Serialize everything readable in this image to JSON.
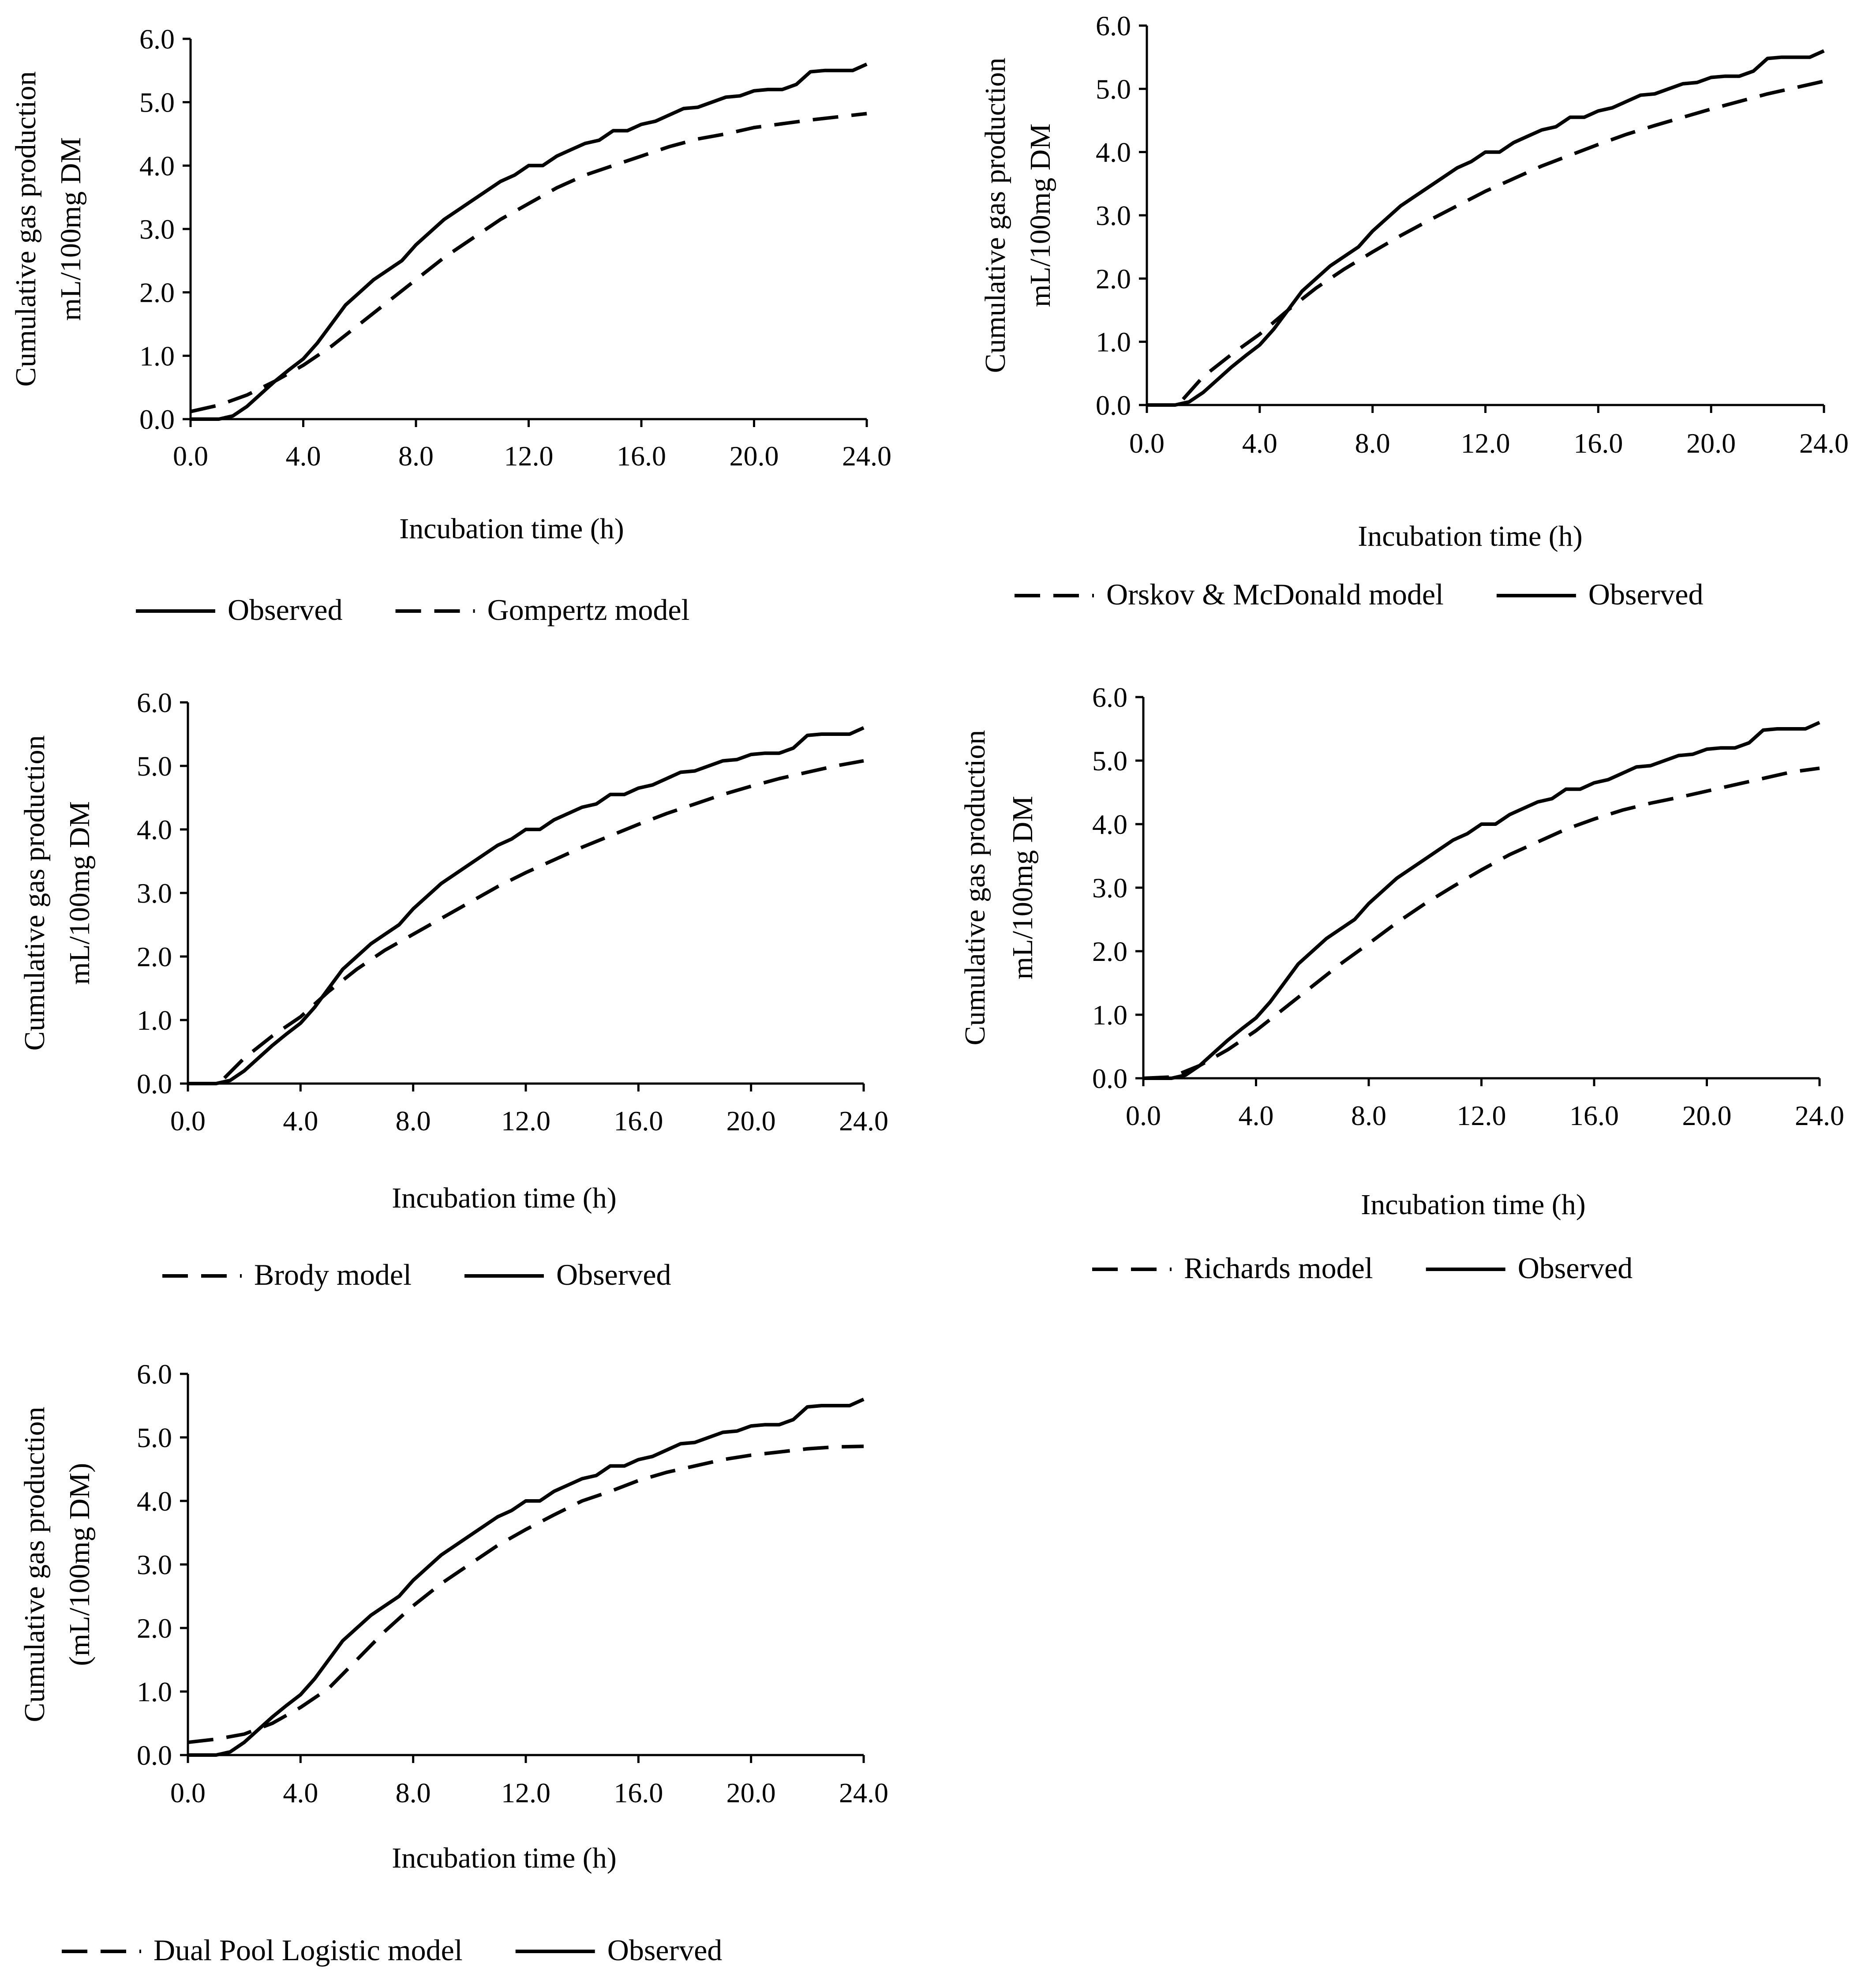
{
  "chart_data": [
    {
      "type": "line",
      "title": "",
      "xlabel": "Incubation time (h)",
      "ylabel": [
        "Cumulative gas production",
        "mL/100mg DM"
      ],
      "xlim": [
        0,
        24
      ],
      "ylim": [
        0,
        6
      ],
      "xticks": [
        "0.0",
        "4.0",
        "8.0",
        "12.0",
        "16.0",
        "20.0",
        "24.0"
      ],
      "yticks": [
        "0.0",
        "1.0",
        "2.0",
        "3.0",
        "4.0",
        "5.0",
        "6.0"
      ],
      "grid": false,
      "legend_position": "bottom",
      "legend_order": [
        "Observed",
        "Gompertz model"
      ],
      "series": [
        {
          "name": "Observed",
          "style": "solid",
          "x": [
            0,
            1,
            1.5,
            2,
            2.5,
            3,
            3.5,
            4,
            4.5,
            5,
            5.5,
            6,
            6.5,
            7,
            7.5,
            8,
            8.5,
            9,
            9.5,
            10,
            10.5,
            11,
            11.5,
            12,
            12.5,
            13,
            13.5,
            14,
            14.5,
            15,
            15.5,
            16,
            16.5,
            17,
            17.5,
            18,
            18.5,
            19,
            19.5,
            20,
            20.5,
            21,
            21.5,
            22,
            22.5,
            23,
            23.5,
            24
          ],
          "y": [
            0,
            0,
            0.05,
            0.2,
            0.4,
            0.6,
            0.78,
            0.95,
            1.2,
            1.5,
            1.8,
            2.0,
            2.2,
            2.35,
            2.5,
            2.75,
            2.95,
            3.15,
            3.3,
            3.45,
            3.6,
            3.75,
            3.85,
            4.0,
            4.0,
            4.15,
            4.25,
            4.35,
            4.4,
            4.55,
            4.55,
            4.65,
            4.7,
            4.8,
            4.9,
            4.92,
            5.0,
            5.08,
            5.1,
            5.18,
            5.2,
            5.2,
            5.28,
            5.48,
            5.5,
            5.5,
            5.5,
            5.6
          ]
        },
        {
          "name": "Gompertz model",
          "style": "dashed",
          "x": [
            0,
            1,
            2,
            3,
            4,
            5,
            6,
            7,
            8,
            9,
            10,
            11,
            12,
            13,
            14,
            15,
            16,
            17,
            18,
            19,
            20,
            21,
            22,
            23,
            24
          ],
          "y": [
            0.12,
            0.22,
            0.38,
            0.6,
            0.85,
            1.15,
            1.5,
            1.85,
            2.2,
            2.55,
            2.85,
            3.15,
            3.4,
            3.65,
            3.85,
            4.0,
            4.15,
            4.3,
            4.42,
            4.5,
            4.6,
            4.66,
            4.72,
            4.77,
            4.82
          ]
        }
      ]
    },
    {
      "type": "line",
      "title": "",
      "xlabel": "Incubation time (h)",
      "ylabel": [
        "Cumulative gas production",
        "mL/100mg DM"
      ],
      "xlim": [
        0,
        24
      ],
      "ylim": [
        0,
        6
      ],
      "xticks": [
        "0.0",
        "4.0",
        "8.0",
        "12.0",
        "16.0",
        "20.0",
        "24.0"
      ],
      "yticks": [
        "0.0",
        "1.0",
        "2.0",
        "3.0",
        "4.0",
        "5.0",
        "6.0"
      ],
      "grid": false,
      "legend_position": "bottom",
      "legend_order": [
        "Orskov & McDonald model",
        "Observed"
      ],
      "series": [
        {
          "name": "Observed",
          "style": "solid",
          "x": [
            0,
            1,
            1.5,
            2,
            2.5,
            3,
            3.5,
            4,
            4.5,
            5,
            5.5,
            6,
            6.5,
            7,
            7.5,
            8,
            8.5,
            9,
            9.5,
            10,
            10.5,
            11,
            11.5,
            12,
            12.5,
            13,
            13.5,
            14,
            14.5,
            15,
            15.5,
            16,
            16.5,
            17,
            17.5,
            18,
            18.5,
            19,
            19.5,
            20,
            20.5,
            21,
            21.5,
            22,
            22.5,
            23,
            23.5,
            24
          ],
          "y": [
            0,
            0,
            0.05,
            0.2,
            0.4,
            0.6,
            0.78,
            0.95,
            1.2,
            1.5,
            1.8,
            2.0,
            2.2,
            2.35,
            2.5,
            2.75,
            2.95,
            3.15,
            3.3,
            3.45,
            3.6,
            3.75,
            3.85,
            4.0,
            4.0,
            4.15,
            4.25,
            4.35,
            4.4,
            4.55,
            4.55,
            4.65,
            4.7,
            4.8,
            4.9,
            4.92,
            5.0,
            5.08,
            5.1,
            5.18,
            5.2,
            5.2,
            5.28,
            5.48,
            5.5,
            5.5,
            5.5,
            5.6
          ]
        },
        {
          "name": "Orskov & McDonald model",
          "style": "dashed",
          "x": [
            0,
            1.1,
            2,
            3,
            4,
            5,
            6,
            7,
            8,
            9,
            10,
            11,
            12,
            13,
            14,
            15,
            16,
            17,
            18,
            19,
            20,
            21,
            22,
            23,
            24
          ],
          "y": [
            0,
            0,
            0.45,
            0.8,
            1.12,
            1.5,
            1.85,
            2.15,
            2.42,
            2.68,
            2.92,
            3.15,
            3.38,
            3.58,
            3.78,
            3.95,
            4.12,
            4.28,
            4.42,
            4.55,
            4.68,
            4.8,
            4.92,
            5.02,
            5.12
          ]
        }
      ]
    },
    {
      "type": "line",
      "title": "",
      "xlabel": "Incubation time (h)",
      "ylabel": [
        "Cumulative gas production",
        "mL/100mg DM"
      ],
      "xlim": [
        0,
        24
      ],
      "ylim": [
        0,
        6
      ],
      "xticks": [
        "0.0",
        "4.0",
        "8.0",
        "12.0",
        "16.0",
        "20.0",
        "24.0"
      ],
      "yticks": [
        "0.0",
        "1.0",
        "2.0",
        "3.0",
        "4.0",
        "5.0",
        "6.0"
      ],
      "grid": false,
      "legend_position": "bottom",
      "legend_order": [
        "Brody model",
        "Observed"
      ],
      "series": [
        {
          "name": "Observed",
          "style": "solid",
          "x": [
            0,
            1,
            1.5,
            2,
            2.5,
            3,
            3.5,
            4,
            4.5,
            5,
            5.5,
            6,
            6.5,
            7,
            7.5,
            8,
            8.5,
            9,
            9.5,
            10,
            10.5,
            11,
            11.5,
            12,
            12.5,
            13,
            13.5,
            14,
            14.5,
            15,
            15.5,
            16,
            16.5,
            17,
            17.5,
            18,
            18.5,
            19,
            19.5,
            20,
            20.5,
            21,
            21.5,
            22,
            22.5,
            23,
            23.5,
            24
          ],
          "y": [
            0,
            0,
            0.05,
            0.2,
            0.4,
            0.6,
            0.78,
            0.95,
            1.2,
            1.5,
            1.8,
            2.0,
            2.2,
            2.35,
            2.5,
            2.75,
            2.95,
            3.15,
            3.3,
            3.45,
            3.6,
            3.75,
            3.85,
            4.0,
            4.0,
            4.15,
            4.25,
            4.35,
            4.4,
            4.55,
            4.55,
            4.65,
            4.7,
            4.8,
            4.9,
            4.92,
            5.0,
            5.08,
            5.1,
            5.18,
            5.2,
            5.2,
            5.28,
            5.48,
            5.5,
            5.5,
            5.5,
            5.6
          ]
        },
        {
          "name": "Brody model",
          "style": "dashed",
          "x": [
            0,
            1.1,
            2,
            3,
            4,
            5,
            6,
            7,
            8,
            9,
            10,
            11,
            12,
            13,
            14,
            15,
            16,
            17,
            18,
            19,
            20,
            21,
            22,
            23,
            24
          ],
          "y": [
            0,
            0,
            0.4,
            0.75,
            1.05,
            1.45,
            1.8,
            2.1,
            2.35,
            2.6,
            2.85,
            3.1,
            3.32,
            3.52,
            3.72,
            3.9,
            4.08,
            4.25,
            4.4,
            4.55,
            4.68,
            4.8,
            4.9,
            5.0,
            5.08
          ]
        }
      ]
    },
    {
      "type": "line",
      "title": "",
      "xlabel": "Incubation time (h)",
      "ylabel": [
        "Cumulative gas production",
        "mL/100mg DM"
      ],
      "xlim": [
        0,
        24
      ],
      "ylim": [
        0,
        6
      ],
      "xticks": [
        "0.0",
        "4.0",
        "8.0",
        "12.0",
        "16.0",
        "20.0",
        "24.0"
      ],
      "yticks": [
        "0.0",
        "1.0",
        "2.0",
        "3.0",
        "4.0",
        "5.0",
        "6.0"
      ],
      "grid": false,
      "legend_position": "bottom",
      "legend_order": [
        "Richards model",
        "Observed"
      ],
      "series": [
        {
          "name": "Observed",
          "style": "solid",
          "x": [
            0,
            1,
            1.5,
            2,
            2.5,
            3,
            3.5,
            4,
            4.5,
            5,
            5.5,
            6,
            6.5,
            7,
            7.5,
            8,
            8.5,
            9,
            9.5,
            10,
            10.5,
            11,
            11.5,
            12,
            12.5,
            13,
            13.5,
            14,
            14.5,
            15,
            15.5,
            16,
            16.5,
            17,
            17.5,
            18,
            18.5,
            19,
            19.5,
            20,
            20.5,
            21,
            21.5,
            22,
            22.5,
            23,
            23.5,
            24
          ],
          "y": [
            0,
            0,
            0.05,
            0.2,
            0.4,
            0.6,
            0.78,
            0.95,
            1.2,
            1.5,
            1.8,
            2.0,
            2.2,
            2.35,
            2.5,
            2.75,
            2.95,
            3.15,
            3.3,
            3.45,
            3.6,
            3.75,
            3.85,
            4.0,
            4.0,
            4.15,
            4.25,
            4.35,
            4.4,
            4.55,
            4.55,
            4.65,
            4.7,
            4.8,
            4.9,
            4.92,
            5.0,
            5.08,
            5.1,
            5.18,
            5.2,
            5.2,
            5.28,
            5.48,
            5.5,
            5.5,
            5.5,
            5.6
          ]
        },
        {
          "name": "Richards model",
          "style": "dashed",
          "x": [
            0,
            1,
            2,
            3,
            4,
            5,
            6,
            7,
            8,
            9,
            10,
            11,
            12,
            13,
            14,
            15,
            16,
            17,
            18,
            19,
            20,
            21,
            22,
            23,
            24
          ],
          "y": [
            0,
            0.02,
            0.2,
            0.45,
            0.75,
            1.1,
            1.45,
            1.8,
            2.12,
            2.45,
            2.75,
            3.02,
            3.28,
            3.52,
            3.72,
            3.92,
            4.08,
            4.22,
            4.33,
            4.42,
            4.52,
            4.62,
            4.72,
            4.82,
            4.88
          ]
        }
      ]
    },
    {
      "type": "line",
      "title": "",
      "xlabel": "Incubation time (h)",
      "ylabel": [
        "Cumulative gas production",
        "(mL/100mg DM)"
      ],
      "xlim": [
        0,
        24
      ],
      "ylim": [
        0,
        6
      ],
      "xticks": [
        "0.0",
        "4.0",
        "8.0",
        "12.0",
        "16.0",
        "20.0",
        "24.0"
      ],
      "yticks": [
        "0.0",
        "1.0",
        "2.0",
        "3.0",
        "4.0",
        "5.0",
        "6.0"
      ],
      "grid": false,
      "legend_position": "bottom",
      "legend_order": [
        "Dual Pool Logistic model",
        "Observed"
      ],
      "series": [
        {
          "name": "Observed",
          "style": "solid",
          "x": [
            0,
            1,
            1.5,
            2,
            2.5,
            3,
            3.5,
            4,
            4.5,
            5,
            5.5,
            6,
            6.5,
            7,
            7.5,
            8,
            8.5,
            9,
            9.5,
            10,
            10.5,
            11,
            11.5,
            12,
            12.5,
            13,
            13.5,
            14,
            14.5,
            15,
            15.5,
            16,
            16.5,
            17,
            17.5,
            18,
            18.5,
            19,
            19.5,
            20,
            20.5,
            21,
            21.5,
            22,
            22.5,
            23,
            23.5,
            24
          ],
          "y": [
            0,
            0,
            0.05,
            0.2,
            0.4,
            0.6,
            0.78,
            0.95,
            1.2,
            1.5,
            1.8,
            2.0,
            2.2,
            2.35,
            2.5,
            2.75,
            2.95,
            3.15,
            3.3,
            3.45,
            3.6,
            3.75,
            3.85,
            4.0,
            4.0,
            4.15,
            4.25,
            4.35,
            4.4,
            4.55,
            4.55,
            4.65,
            4.7,
            4.8,
            4.9,
            4.92,
            5.0,
            5.08,
            5.1,
            5.18,
            5.2,
            5.2,
            5.28,
            5.48,
            5.5,
            5.5,
            5.5,
            5.6
          ]
        },
        {
          "name": "Dual Pool Logistic model",
          "style": "dashed",
          "x": [
            0,
            1,
            2,
            3,
            4,
            5,
            6,
            7,
            8,
            9,
            10,
            11,
            12,
            13,
            14,
            15,
            16,
            17,
            18,
            19,
            20,
            21,
            22,
            23,
            24
          ],
          "y": [
            0.2,
            0.25,
            0.33,
            0.5,
            0.75,
            1.05,
            1.5,
            1.95,
            2.35,
            2.7,
            3.0,
            3.3,
            3.55,
            3.78,
            4.0,
            4.15,
            4.32,
            4.45,
            4.55,
            4.65,
            4.72,
            4.77,
            4.82,
            4.85,
            4.86
          ]
        }
      ]
    }
  ]
}
